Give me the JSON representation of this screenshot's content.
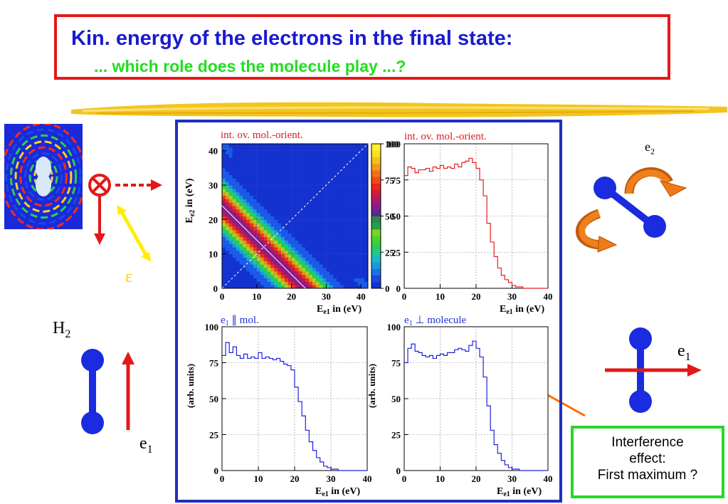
{
  "slide": {
    "title": "Kin. energy of the electrons in the final state:",
    "subtitle": "... which role does the molecule play ...?"
  },
  "left_graphic": {
    "epsilon_label": "ε",
    "h2_label": "H",
    "h2_sub": "2",
    "e1_label": "e",
    "e1_sub": "1"
  },
  "right_graphic": {
    "e2_label": "e",
    "e2_sub": "2",
    "e1_label": "e",
    "e1_sub": "1"
  },
  "annotation": {
    "line1": "Interference",
    "line2": "effect:",
    "line3": "First maximum ?"
  },
  "colors": {
    "title": "#1a1ad0",
    "subtitle": "#22dd22",
    "red_frame": "#e31818",
    "blue_frame": "#1f2fbf",
    "red_hist": "#e52020",
    "blue_hist": "#2020e0",
    "arrow_orange": "#ff6a00"
  },
  "chart_data": [
    {
      "type": "heatmap",
      "title": "int. ov. mol.-orient.",
      "xlabel": "E",
      "xlabel_sub": "e1",
      "xlabel_unit": " in (eV)",
      "ylabel": "E",
      "ylabel_sub": "e2",
      "ylabel_unit": " in (eV)",
      "xlim": [
        0,
        42
      ],
      "ylim": [
        0,
        42
      ],
      "xticks": [
        0,
        10,
        20,
        30,
        40
      ],
      "yticks": [
        0,
        10,
        20,
        30,
        40
      ],
      "band": {
        "sum_energy_center": 24,
        "width": 5
      },
      "colorbar": {
        "ticks": [
          0,
          25,
          50,
          75,
          100
        ]
      },
      "grid": true
    },
    {
      "type": "line",
      "title": "int. ov. mol.-orient.",
      "xlabel": "E",
      "xlabel_sub": "e1",
      "xlabel_unit": " in (eV)",
      "xlim": [
        0,
        40
      ],
      "ylim": [
        0,
        100
      ],
      "xticks": [
        0,
        10,
        20,
        30,
        40
      ],
      "yticks": [
        0,
        25,
        50,
        75,
        100
      ],
      "x": [
        0,
        1,
        2,
        3,
        4,
        5,
        6,
        7,
        8,
        9,
        10,
        11,
        12,
        13,
        14,
        15,
        16,
        17,
        18,
        19,
        20,
        21,
        22,
        23,
        24,
        25,
        26,
        27,
        28,
        29,
        30,
        31,
        32,
        33,
        34,
        35,
        36,
        37,
        38,
        39
      ],
      "y": [
        78,
        84,
        83,
        80,
        82,
        82,
        83,
        81,
        84,
        83,
        85,
        83,
        84,
        83,
        86,
        84,
        87,
        88,
        90,
        87,
        83,
        75,
        64,
        45,
        32,
        22,
        14,
        9,
        6,
        4,
        2,
        1,
        1,
        0,
        0,
        0,
        0,
        0,
        0,
        0
      ],
      "grid": true
    },
    {
      "type": "line",
      "title": "e",
      "title_sub": "1",
      "title_rest": " ∥ mol.",
      "xlabel": "E",
      "xlabel_sub": "e1",
      "xlabel_unit": " in (eV)",
      "ylabel": "(arb. units)",
      "xlim": [
        0,
        40
      ],
      "ylim": [
        0,
        100
      ],
      "xticks": [
        0,
        10,
        20,
        30,
        40
      ],
      "yticks": [
        0,
        25,
        50,
        75,
        100
      ],
      "x": [
        0,
        1,
        2,
        3,
        4,
        5,
        6,
        7,
        8,
        9,
        10,
        11,
        12,
        13,
        14,
        15,
        16,
        17,
        18,
        19,
        20,
        21,
        22,
        23,
        24,
        25,
        26,
        27,
        28,
        29,
        30,
        31,
        32,
        33,
        34,
        35,
        36,
        37,
        38,
        39
      ],
      "y": [
        80,
        89,
        82,
        86,
        80,
        78,
        81,
        78,
        79,
        78,
        82,
        78,
        79,
        78,
        77,
        78,
        76,
        74,
        73,
        70,
        58,
        48,
        38,
        28,
        20,
        14,
        9,
        6,
        3,
        2,
        1,
        1,
        0,
        0,
        0,
        0,
        0,
        0,
        0,
        0
      ],
      "grid": true
    },
    {
      "type": "line",
      "title": "e",
      "title_sub": "1",
      "title_rest": " ⊥ molecule",
      "xlabel": "E",
      "xlabel_sub": "e1",
      "xlabel_unit": " in (eV)",
      "ylabel": "(arb. units)",
      "xlim": [
        0,
        40
      ],
      "ylim": [
        0,
        100
      ],
      "xticks": [
        0,
        10,
        20,
        30,
        40
      ],
      "yticks": [
        0,
        25,
        50,
        75,
        100
      ],
      "x": [
        0,
        1,
        2,
        3,
        4,
        5,
        6,
        7,
        8,
        9,
        10,
        11,
        12,
        13,
        14,
        15,
        16,
        17,
        18,
        19,
        20,
        21,
        22,
        23,
        24,
        25,
        26,
        27,
        28,
        29,
        30,
        31,
        32,
        33,
        34,
        35,
        36,
        37,
        38,
        39
      ],
      "y": [
        75,
        85,
        88,
        83,
        82,
        80,
        79,
        80,
        78,
        80,
        81,
        80,
        82,
        82,
        84,
        85,
        84,
        83,
        87,
        90,
        85,
        79,
        65,
        45,
        28,
        18,
        12,
        7,
        4,
        2,
        1,
        1,
        0,
        0,
        0,
        0,
        0,
        0,
        0,
        0
      ],
      "grid": true
    }
  ]
}
